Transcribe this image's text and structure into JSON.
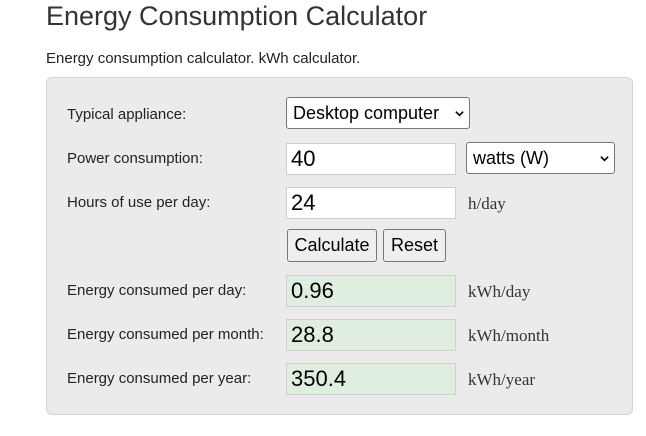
{
  "header": {
    "title": "Energy Consumption Calculator",
    "subtitle": "Energy consumption calculator. kWh calculator."
  },
  "form": {
    "appliance": {
      "label": "Typical appliance:",
      "selected": "Desktop computer"
    },
    "power": {
      "label": "Power consumption:",
      "value": "40",
      "unit_selected": "watts (W)"
    },
    "hours": {
      "label": "Hours of use per day:",
      "value": "24",
      "unit": "h/day"
    },
    "buttons": {
      "calculate": "Calculate",
      "reset": "Reset"
    }
  },
  "results": {
    "per_day": {
      "label": "Energy consumed per day:",
      "value": "0.96",
      "unit": "kWh/day"
    },
    "per_month": {
      "label": "Energy consumed per month:",
      "value": "28.8",
      "unit": "kWh/month"
    },
    "per_year": {
      "label": "Energy consumed per year:",
      "value": "350.4",
      "unit": "kWh/year"
    }
  },
  "colors": {
    "panel_bg": "#ebebeb",
    "result_bg": "#dfeede"
  },
  "icons": {
    "dropdown": "chevron-down-icon"
  }
}
